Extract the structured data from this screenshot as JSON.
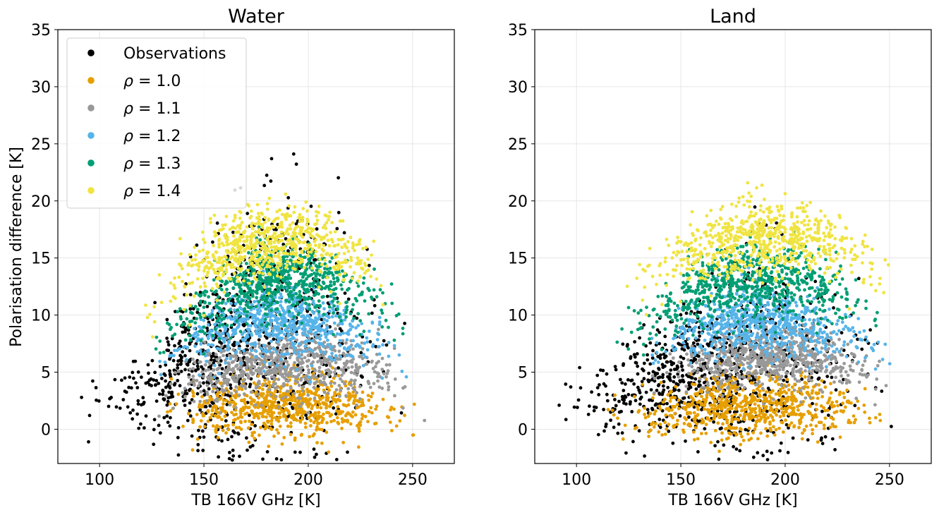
{
  "figure": {
    "shared_ylabel": "Polarisation difference [K]"
  },
  "legend": {
    "placement": "upper-left of left panel",
    "entries": [
      {
        "symbol": "",
        "eq": "Observations",
        "color": "#000000"
      },
      {
        "symbol": "ρ",
        "eq": " = 1.0",
        "color": "#E69F00"
      },
      {
        "symbol": "ρ",
        "eq": " = 1.1",
        "color": "#999999"
      },
      {
        "symbol": "ρ",
        "eq": " = 1.2",
        "color": "#56B4E9"
      },
      {
        "symbol": "ρ",
        "eq": " = 1.3",
        "color": "#009E73"
      },
      {
        "symbol": "ρ",
        "eq": " = 1.4",
        "color": "#F0E442"
      }
    ]
  },
  "chart_data": [
    {
      "type": "scatter",
      "title": "Water",
      "xlabel": "TB 166V GHz [K]",
      "ylabel": "Polarisation difference [K]",
      "xlim": [
        80,
        270
      ],
      "ylim": [
        -3,
        35
      ],
      "xticks": [
        100,
        150,
        200,
        250
      ],
      "yticks": [
        0,
        5,
        10,
        15,
        20,
        25,
        30,
        35
      ],
      "grid": true,
      "series": [
        {
          "name": "Observations",
          "color": "#000000",
          "x": [
            80,
            90,
            100,
            110,
            120,
            130,
            140,
            150,
            160,
            170,
            180,
            190,
            200,
            210,
            220,
            230,
            240,
            250,
            258
          ],
          "y_center": [
            2.5,
            2.5,
            2.7,
            3.0,
            3.5,
            4.0,
            5.0,
            6.0,
            7.0,
            8.0,
            9.0,
            9.5,
            10.0,
            9.5,
            9.0,
            8.0,
            6.5,
            4.0,
            2.0
          ],
          "y_spread": [
            1.5,
            1.5,
            1.8,
            2.0,
            2.5,
            3.0,
            4.0,
            5.0,
            6.0,
            7.0,
            7.5,
            8.0,
            8.5,
            8.0,
            7.5,
            6.5,
            5.0,
            3.0,
            2.0
          ],
          "y_max": 25.6
        },
        {
          "name": "ρ = 1.0",
          "color": "#E69F00",
          "x": [
            118,
            130,
            140,
            150,
            160,
            170,
            180,
            190,
            200,
            210,
            220,
            230,
            240,
            250,
            258
          ],
          "y_center": [
            1.0,
            1.3,
            1.5,
            1.6,
            1.8,
            2.0,
            2.1,
            2.2,
            2.2,
            2.1,
            2.0,
            1.8,
            1.5,
            1.0,
            0.5
          ],
          "y_spread": [
            1.3,
            1.4,
            1.5,
            1.6,
            1.7,
            1.8,
            1.8,
            1.8,
            1.8,
            1.8,
            1.7,
            1.6,
            1.5,
            1.3,
            1.0
          ]
        },
        {
          "name": "ρ = 1.1",
          "color": "#999999",
          "x": [
            118,
            130,
            140,
            150,
            160,
            170,
            180,
            190,
            200,
            210,
            220,
            230,
            240,
            250,
            258
          ],
          "y_center": [
            3.0,
            3.5,
            4.0,
            4.5,
            5.0,
            5.5,
            5.8,
            6.0,
            6.0,
            5.8,
            5.5,
            5.0,
            4.5,
            3.5,
            2.5
          ],
          "y_spread": [
            1.2,
            1.4,
            1.5,
            1.7,
            1.8,
            1.9,
            2.0,
            2.0,
            2.0,
            2.0,
            1.9,
            1.8,
            1.6,
            1.4,
            1.2
          ]
        },
        {
          "name": "ρ = 1.2",
          "color": "#56B4E9",
          "x": [
            118,
            130,
            140,
            150,
            160,
            170,
            180,
            190,
            200,
            210,
            220,
            230,
            240,
            250,
            256
          ],
          "y_center": [
            5.0,
            6.0,
            7.0,
            8.0,
            8.8,
            9.3,
            9.5,
            9.5,
            9.3,
            9.0,
            8.5,
            7.8,
            7.0,
            5.5,
            4.0
          ],
          "y_spread": [
            1.2,
            1.4,
            1.6,
            1.8,
            1.9,
            2.0,
            2.0,
            2.0,
            2.0,
            2.0,
            1.9,
            1.8,
            1.7,
            1.5,
            1.3
          ]
        },
        {
          "name": "ρ = 1.3",
          "color": "#009E73",
          "x": [
            118,
            130,
            140,
            150,
            160,
            170,
            180,
            190,
            200,
            210,
            220,
            230,
            240,
            250,
            255
          ],
          "y_center": [
            6.5,
            8.0,
            9.5,
            10.8,
            11.8,
            12.5,
            13.0,
            13.2,
            13.2,
            12.8,
            12.2,
            11.2,
            10.0,
            7.5,
            6.0
          ],
          "y_spread": [
            1.3,
            1.5,
            1.7,
            1.9,
            2.0,
            2.0,
            2.0,
            2.0,
            2.0,
            2.0,
            2.0,
            1.9,
            1.8,
            1.6,
            1.4
          ]
        },
        {
          "name": "ρ = 1.4",
          "color": "#F0E442",
          "x": [
            112,
            120,
            130,
            140,
            150,
            160,
            170,
            180,
            190,
            200,
            210,
            220,
            230,
            240,
            250
          ],
          "y_center": [
            9.5,
            11.0,
            12.0,
            13.5,
            14.5,
            15.5,
            16.2,
            16.7,
            16.8,
            16.5,
            16.0,
            15.0,
            13.5,
            11.5,
            8.5
          ],
          "y_spread": [
            1.3,
            1.5,
            1.7,
            1.9,
            2.0,
            2.1,
            2.1,
            2.1,
            2.1,
            2.1,
            2.1,
            2.0,
            1.9,
            1.7,
            1.5
          ]
        }
      ]
    },
    {
      "type": "scatter",
      "title": "Land",
      "xlabel": "TB 166V GHz [K]",
      "ylabel": "",
      "xlim": [
        80,
        270
      ],
      "ylim": [
        -3,
        35
      ],
      "xticks": [
        100,
        150,
        200,
        250
      ],
      "yticks": [
        0,
        5,
        10,
        15,
        20,
        25,
        30,
        35
      ],
      "grid": true,
      "series": [
        {
          "name": "Observations",
          "color": "#000000",
          "x": [
            80,
            90,
            100,
            110,
            120,
            130,
            140,
            150,
            160,
            170,
            180,
            190,
            200,
            210,
            220,
            230,
            240,
            250,
            257
          ],
          "y_center": [
            2.5,
            2.5,
            2.8,
            3.0,
            3.5,
            4.0,
            4.5,
            5.0,
            5.5,
            6.0,
            6.3,
            6.5,
            6.5,
            6.3,
            6.0,
            5.5,
            5.0,
            4.0,
            3.0
          ],
          "y_spread": [
            1.5,
            1.7,
            2.0,
            2.2,
            2.5,
            3.0,
            3.5,
            4.0,
            4.5,
            5.0,
            5.5,
            5.5,
            5.5,
            5.5,
            5.0,
            4.5,
            4.0,
            3.0,
            2.5
          ],
          "y_max": 19.6
        },
        {
          "name": "ρ = 1.0",
          "color": "#E69F00",
          "x": [
            108,
            120,
            130,
            140,
            150,
            160,
            170,
            180,
            190,
            200,
            210,
            220,
            230,
            240,
            250,
            257
          ],
          "y_center": [
            0.8,
            1.0,
            1.3,
            1.5,
            1.7,
            1.9,
            2.0,
            2.1,
            2.2,
            2.2,
            2.1,
            2.0,
            1.8,
            1.6,
            1.2,
            0.9
          ],
          "y_spread": [
            1.3,
            1.4,
            1.5,
            1.6,
            1.7,
            1.8,
            1.8,
            1.8,
            1.8,
            1.8,
            1.8,
            1.7,
            1.6,
            1.5,
            1.3,
            1.1
          ]
        },
        {
          "name": "ρ = 1.1",
          "color": "#999999",
          "x": [
            130,
            140,
            150,
            160,
            170,
            180,
            190,
            200,
            210,
            220,
            230,
            240,
            250,
            256
          ],
          "y_center": [
            4.0,
            4.5,
            5.0,
            5.5,
            6.0,
            6.3,
            6.5,
            6.5,
            6.3,
            6.0,
            5.5,
            5.0,
            4.0,
            3.5
          ],
          "y_spread": [
            1.2,
            1.4,
            1.5,
            1.6,
            1.7,
            1.8,
            1.8,
            1.8,
            1.8,
            1.7,
            1.6,
            1.5,
            1.3,
            1.2
          ]
        },
        {
          "name": "ρ = 1.2",
          "color": "#56B4E9",
          "x": [
            125,
            135,
            145,
            155,
            165,
            175,
            185,
            195,
            205,
            215,
            225,
            235,
            245,
            255
          ],
          "y_center": [
            6.0,
            7.0,
            8.0,
            8.8,
            9.3,
            9.6,
            9.8,
            9.8,
            9.5,
            9.0,
            8.3,
            7.5,
            6.5,
            5.5
          ],
          "y_spread": [
            1.2,
            1.4,
            1.6,
            1.7,
            1.8,
            1.9,
            1.9,
            1.9,
            1.9,
            1.8,
            1.7,
            1.6,
            1.5,
            1.3
          ]
        },
        {
          "name": "ρ = 1.3",
          "color": "#009E73",
          "x": [
            110,
            120,
            130,
            140,
            150,
            160,
            170,
            180,
            190,
            200,
            210,
            220,
            230,
            240,
            250,
            255
          ],
          "y_center": [
            7.0,
            8.0,
            9.5,
            10.5,
            11.5,
            12.3,
            12.8,
            13.0,
            13.2,
            13.0,
            12.8,
            12.3,
            11.5,
            10.5,
            9.0,
            8.0
          ],
          "y_spread": [
            1.3,
            1.5,
            1.7,
            1.8,
            1.9,
            2.0,
            2.0,
            2.0,
            2.0,
            2.0,
            2.0,
            1.9,
            1.8,
            1.7,
            1.5,
            1.4
          ]
        },
        {
          "name": "ρ = 1.4",
          "color": "#F0E442",
          "x": [
            118,
            130,
            140,
            150,
            160,
            170,
            180,
            190,
            200,
            210,
            220,
            230,
            240,
            250,
            260
          ],
          "y_center": [
            11.0,
            12.5,
            13.8,
            15.0,
            15.8,
            16.5,
            16.8,
            17.0,
            17.0,
            16.8,
            16.3,
            15.5,
            14.5,
            13.0,
            12.0
          ],
          "y_spread": [
            1.3,
            1.5,
            1.7,
            1.9,
            2.0,
            2.1,
            2.1,
            2.1,
            2.1,
            2.1,
            2.0,
            1.9,
            1.8,
            1.6,
            1.4
          ]
        }
      ]
    }
  ]
}
